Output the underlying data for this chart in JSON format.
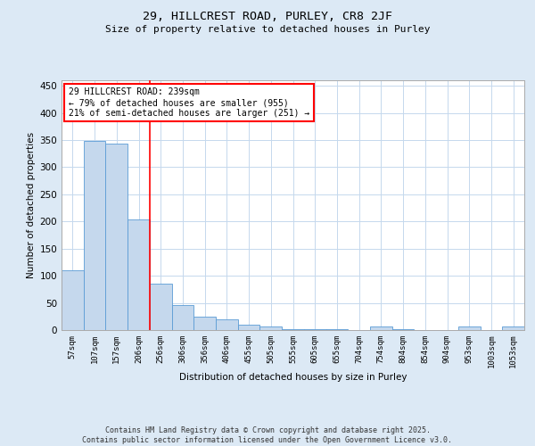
{
  "title_line1": "29, HILLCREST ROAD, PURLEY, CR8 2JF",
  "title_line2": "Size of property relative to detached houses in Purley",
  "xlabel": "Distribution of detached houses by size in Purley",
  "ylabel": "Number of detached properties",
  "categories": [
    "57sqm",
    "107sqm",
    "157sqm",
    "206sqm",
    "256sqm",
    "306sqm",
    "356sqm",
    "406sqm",
    "455sqm",
    "505sqm",
    "555sqm",
    "605sqm",
    "655sqm",
    "704sqm",
    "754sqm",
    "804sqm",
    "854sqm",
    "904sqm",
    "953sqm",
    "1003sqm",
    "1053sqm"
  ],
  "values": [
    110,
    348,
    344,
    204,
    85,
    46,
    25,
    20,
    10,
    6,
    2,
    2,
    2,
    0,
    7,
    1,
    0,
    0,
    7,
    0,
    7
  ],
  "bar_color": "#c5d8ed",
  "bar_edge_color": "#5b9bd5",
  "grid_color": "#c5d8ed",
  "vline_color": "red",
  "annotation_text": "29 HILLCREST ROAD: 239sqm\n← 79% of detached houses are smaller (955)\n21% of semi-detached houses are larger (251) →",
  "annotation_box_color": "white",
  "annotation_box_edge_color": "red",
  "ylim": [
    0,
    460
  ],
  "yticks": [
    0,
    50,
    100,
    150,
    200,
    250,
    300,
    350,
    400,
    450
  ],
  "footer_text": "Contains HM Land Registry data © Crown copyright and database right 2025.\nContains public sector information licensed under the Open Government Licence v3.0.",
  "bg_color": "#dce9f5",
  "plot_bg_color": "white"
}
